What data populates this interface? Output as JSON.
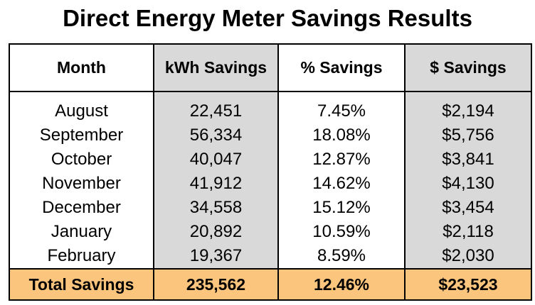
{
  "title": "Direct Energy Meter Savings Results",
  "table": {
    "headers": [
      "Month",
      "kWh Savings",
      "% Savings",
      "$ Savings"
    ],
    "rows": [
      [
        "August",
        "22,451",
        "7.45%",
        "$2,194"
      ],
      [
        "September",
        "56,334",
        "18.08%",
        "$5,756"
      ],
      [
        "October",
        "40,047",
        "12.87%",
        "$3,841"
      ],
      [
        "November",
        "41,912",
        "14.62%",
        "$4,130"
      ],
      [
        "December",
        "34,558",
        "15.12%",
        "$3,454"
      ],
      [
        "January",
        "20,892",
        "10.59%",
        "$2,118"
      ],
      [
        "February",
        "19,367",
        "8.59%",
        "$2,030"
      ]
    ],
    "total": [
      "Total Savings",
      "235,562",
      "12.46%",
      "$23,523"
    ]
  },
  "colors": {
    "header_gray": "#d9d9d9",
    "total_orange": "#fbc57d"
  }
}
